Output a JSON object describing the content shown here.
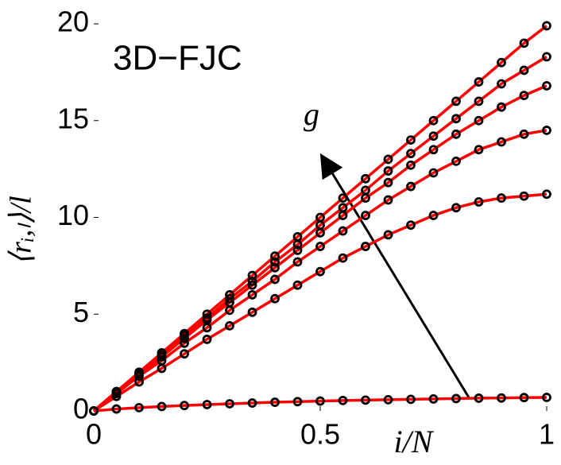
{
  "chart_data": {
    "type": "line",
    "annotations": [
      "3D−FJC",
      "g"
    ],
    "xlabel": "i/N",
    "ylabel": "⟨rᵢ,ₗ⟩/l",
    "x": [
      0,
      0.05,
      0.1,
      0.15,
      0.2,
      0.25,
      0.3,
      0.35,
      0.4,
      0.45,
      0.5,
      0.55,
      0.6,
      0.65,
      0.7,
      0.75,
      0.8,
      0.85,
      0.9,
      0.95,
      1
    ],
    "series": [
      {
        "color": "#ff0000",
        "values": [
          0,
          1,
          2,
          3,
          4,
          5,
          6,
          7,
          8,
          9,
          10,
          11,
          12,
          13,
          14,
          15,
          16,
          17,
          18,
          19,
          19.9
        ]
      },
      {
        "color": "#ff0000",
        "values": [
          0,
          1.0,
          1.95,
          2.9,
          3.9,
          4.8,
          5.8,
          6.7,
          7.7,
          8.6,
          9.6,
          10.5,
          11.4,
          12.4,
          13.3,
          14.2,
          15.1,
          16.0,
          16.9,
          17.6,
          18.3
        ]
      },
      {
        "color": "#ff0000",
        "values": [
          0,
          0.95,
          1.9,
          2.8,
          3.75,
          4.7,
          5.6,
          6.5,
          7.4,
          8.3,
          9.2,
          10.1,
          11.0,
          11.8,
          12.7,
          13.5,
          14.3,
          15.0,
          15.7,
          16.3,
          16.8
        ]
      },
      {
        "color": "#ff0000",
        "values": [
          0,
          0.9,
          1.8,
          2.6,
          3.5,
          4.3,
          5.2,
          6.0,
          6.8,
          7.7,
          8.5,
          9.3,
          10.1,
          10.9,
          11.6,
          12.3,
          12.9,
          13.5,
          13.9,
          14.3,
          14.5
        ]
      },
      {
        "color": "#ff0000",
        "values": [
          0,
          0.75,
          1.5,
          2.2,
          2.95,
          3.7,
          4.4,
          5.1,
          5.8,
          6.5,
          7.2,
          7.9,
          8.5,
          9.1,
          9.6,
          10.1,
          10.5,
          10.8,
          11.0,
          11.1,
          11.2
        ]
      },
      {
        "color": "#ff0000",
        "values": [
          0,
          0.1,
          0.17,
          0.23,
          0.28,
          0.33,
          0.37,
          0.41,
          0.45,
          0.48,
          0.51,
          0.54,
          0.56,
          0.58,
          0.6,
          0.62,
          0.64,
          0.66,
          0.67,
          0.69,
          0.7
        ]
      }
    ],
    "marker_color": "#000000",
    "xlim": [
      0,
      1
    ],
    "ylim": [
      0,
      20
    ],
    "xticks": [
      0,
      0.5,
      1
    ],
    "yticks": [
      0,
      5,
      10,
      15,
      20
    ]
  }
}
